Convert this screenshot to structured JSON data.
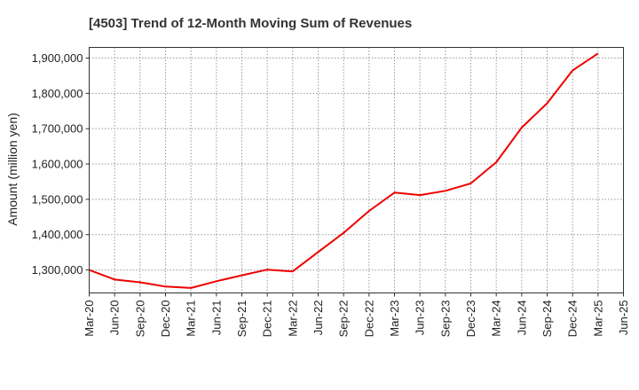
{
  "chart_data": {
    "type": "line",
    "title": "[4503]  Trend of 12-Month Moving Sum of Revenues",
    "xlabel": "",
    "ylabel": "Amount (million yen)",
    "x_tick_labels": [
      "Mar-20",
      "Jun-20",
      "Sep-20",
      "Dec-20",
      "Mar-21",
      "Jun-21",
      "Sep-21",
      "Dec-21",
      "Mar-22",
      "Jun-22",
      "Sep-22",
      "Dec-22",
      "Mar-23",
      "Jun-23",
      "Sep-23",
      "Dec-23",
      "Mar-24",
      "Jun-24",
      "Sep-24",
      "Dec-24",
      "Mar-25",
      "Jun-25"
    ],
    "y_tick_labels": [
      "1,300,000",
      "1,400,000",
      "1,500,000",
      "1,600,000",
      "1,700,000",
      "1,800,000",
      "1,900,000"
    ],
    "y_ticks": [
      1300000,
      1400000,
      1500000,
      1600000,
      1700000,
      1800000,
      1900000
    ],
    "ylim": [
      1235000,
      1930000
    ],
    "grid": true,
    "legend": "none",
    "series": [
      {
        "color": "#ee0000",
        "x": [
          "Mar-20",
          "Jun-20",
          "Sep-20",
          "Dec-20",
          "Mar-21",
          "Jun-21",
          "Sep-21",
          "Dec-21",
          "Mar-22",
          "Jun-22",
          "Sep-22",
          "Dec-22",
          "Mar-23",
          "Jun-23",
          "Sep-23",
          "Dec-23",
          "Mar-24",
          "Jun-24",
          "Sep-24",
          "Dec-24",
          "Mar-25"
        ],
        "values": [
          1300000,
          1273000,
          1265000,
          1253000,
          1249000,
          1268000,
          1285000,
          1301000,
          1296000,
          1351000,
          1405000,
          1467000,
          1519000,
          1512000,
          1524000,
          1545000,
          1605000,
          1703000,
          1772000,
          1865000,
          1913000
        ]
      }
    ]
  }
}
